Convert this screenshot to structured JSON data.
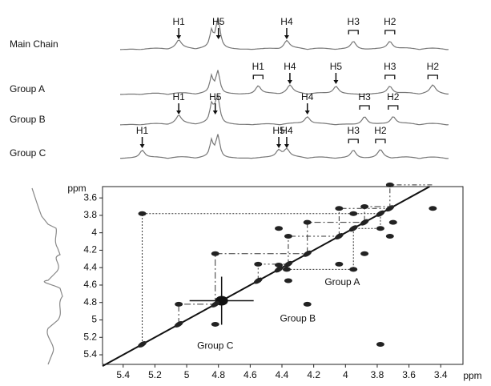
{
  "chart_data": {
    "type": "nmr-cosy",
    "x_label": "ppm",
    "y_label": "ppm",
    "xlim": [
      5.53,
      3.26
    ],
    "xticks": [
      5.4,
      5.2,
      5.0,
      4.8,
      4.6,
      4.4,
      4.2,
      4.0,
      3.8,
      3.6,
      3.4
    ],
    "ylim": [
      3.47,
      5.51
    ],
    "yticks": [
      3.6,
      3.8,
      4.0,
      4.2,
      4.4,
      4.6,
      4.8,
      5.0,
      5.2,
      5.4
    ],
    "traces": [
      {
        "name": "Main Chain",
        "peaks": [
          {
            "label": "H1",
            "ppm": 5.05,
            "style": "arrow"
          },
          {
            "label": "H5",
            "ppm": 4.8,
            "style": "arrow"
          },
          {
            "label": "H4",
            "ppm": 4.37,
            "style": "arrow"
          },
          {
            "label": "H3",
            "ppm": 3.95,
            "style": "bracket"
          },
          {
            "label": "H2",
            "ppm": 3.72,
            "style": "bracket"
          }
        ]
      },
      {
        "name": "Group A",
        "peaks": [
          {
            "label": "H1",
            "ppm": 4.55,
            "style": "bracket"
          },
          {
            "label": "H4",
            "ppm": 4.35,
            "style": "arrow"
          },
          {
            "label": "H5",
            "ppm": 4.06,
            "style": "arrow"
          },
          {
            "label": "H3",
            "ppm": 3.72,
            "style": "bracket"
          },
          {
            "label": "H2",
            "ppm": 3.45,
            "style": "bracket"
          }
        ]
      },
      {
        "name": "Group B",
        "peaks": [
          {
            "label": "H1",
            "ppm": 5.05,
            "style": "arrow"
          },
          {
            "label": "H5",
            "ppm": 4.82,
            "style": "arrow"
          },
          {
            "label": "H4",
            "ppm": 4.24,
            "style": "arrow"
          },
          {
            "label": "H3",
            "ppm": 3.88,
            "style": "bracket"
          },
          {
            "label": "H2",
            "ppm": 3.7,
            "style": "bracket"
          }
        ]
      },
      {
        "name": "Group C",
        "peaks": [
          {
            "label": "H1",
            "ppm": 5.28,
            "style": "arrow"
          },
          {
            "label": "H5",
            "ppm": 4.42,
            "style": "arrow"
          },
          {
            "label": "H4",
            "ppm": 4.37,
            "style": "arrow"
          },
          {
            "label": "H3",
            "ppm": 3.95,
            "style": "bracket"
          },
          {
            "label": "H2",
            "ppm": 3.78,
            "style": "bracket"
          }
        ]
      }
    ],
    "groups": [
      {
        "name": "Group A",
        "label_at": [
          4.02,
          4.57
        ],
        "dash": "6 3 2 3 2 3",
        "cross_peaks": [
          [
            4.36,
            4.04
          ],
          [
            4.04,
            3.72
          ],
          [
            3.72,
            3.45
          ],
          [
            4.55,
            4.36
          ]
        ]
      },
      {
        "name": "Group B",
        "label_at": [
          4.3,
          4.99
        ],
        "dash": "8 3 2 3",
        "cross_peaks": [
          [
            5.05,
            4.82
          ],
          [
            4.82,
            4.24
          ],
          [
            4.24,
            3.88
          ],
          [
            3.88,
            3.7
          ]
        ]
      },
      {
        "name": "Group C",
        "label_at": [
          4.82,
          5.3
        ],
        "dash": "2 2",
        "cross_peaks": [
          [
            5.28,
            3.78
          ],
          [
            3.78,
            3.95
          ],
          [
            3.95,
            4.42
          ],
          [
            4.42,
            4.37
          ]
        ]
      }
    ]
  }
}
